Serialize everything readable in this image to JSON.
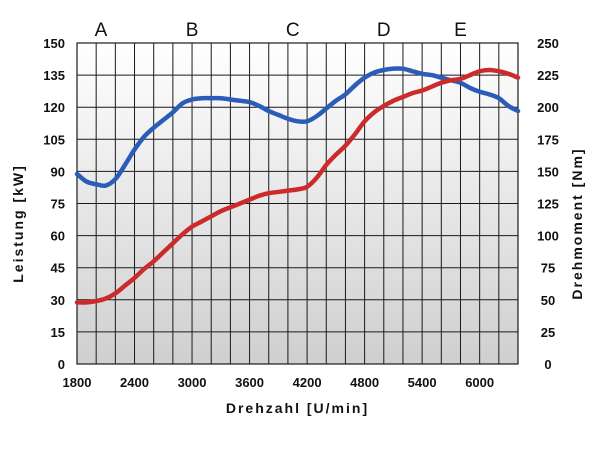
{
  "chart_data": {
    "type": "line",
    "title": "",
    "xlabel": "Drehzahl [U/min]",
    "ylabel": "Leistung [kW]",
    "y2label": "Drehmoment [Nm]",
    "xlim": [
      1800,
      6400
    ],
    "ylim": [
      0,
      150
    ],
    "y2lim": [
      0,
      250
    ],
    "x_ticks": [
      1800,
      2400,
      3000,
      3600,
      4200,
      4800,
      5400,
      6000
    ],
    "y_ticks": [
      0,
      15,
      30,
      45,
      60,
      75,
      90,
      105,
      120,
      135,
      150
    ],
    "y2_ticks": [
      0,
      25,
      50,
      75,
      100,
      125,
      150,
      175,
      200,
      225,
      250
    ],
    "grid": true,
    "grid_x_step": 200,
    "grid_y_step": 15,
    "legend": "none",
    "zone_labels": [
      {
        "text": "A",
        "x": 2050
      },
      {
        "text": "B",
        "x": 3000
      },
      {
        "text": "C",
        "x": 4050
      },
      {
        "text": "D",
        "x": 5000
      },
      {
        "text": "E",
        "x": 5800
      }
    ],
    "series": [
      {
        "axis": "right",
        "color": "#2a5db8",
        "x": [
          1800,
          1900,
          2000,
          2100,
          2200,
          2300,
          2400,
          2500,
          2600,
          2700,
          2800,
          2900,
          3000,
          3100,
          3200,
          3300,
          3400,
          3500,
          3600,
          3700,
          3800,
          3900,
          4000,
          4100,
          4200,
          4300,
          4400,
          4500,
          4600,
          4700,
          4800,
          4900,
          5000,
          5100,
          5200,
          5300,
          5400,
          5500,
          5600,
          5700,
          5800,
          5900,
          6000,
          6100,
          6200,
          6300,
          6400
        ],
        "y": [
          148,
          142,
          140,
          139,
          144,
          155,
          167,
          177,
          184,
          190,
          196,
          203,
          206,
          207,
          207,
          207,
          206,
          205,
          204,
          201,
          197,
          194,
          191,
          189,
          189,
          193,
          199,
          205,
          210,
          217,
          223,
          227,
          229,
          230,
          230,
          228,
          226,
          225,
          223,
          221,
          219,
          215,
          212,
          210,
          207,
          201,
          197
        ]
      },
      {
        "axis": "right",
        "color": "#cc2b2b",
        "x": [
          1800,
          1900,
          2000,
          2100,
          2200,
          2300,
          2400,
          2500,
          2600,
          2700,
          2800,
          2900,
          3000,
          3100,
          3200,
          3300,
          3400,
          3500,
          3600,
          3700,
          3800,
          3900,
          4000,
          4100,
          4200,
          4300,
          4400,
          4500,
          4600,
          4700,
          4800,
          4900,
          5000,
          5100,
          5200,
          5300,
          5400,
          5500,
          5600,
          5700,
          5800,
          5900,
          6000,
          6100,
          6200,
          6300,
          6400
        ],
        "y": [
          48,
          48,
          49,
          51,
          55,
          61,
          67,
          74,
          80,
          87,
          94,
          101,
          107,
          111,
          115,
          119,
          122,
          125,
          128,
          131,
          133,
          134,
          135,
          136,
          138,
          145,
          155,
          163,
          170,
          179,
          189,
          196,
          201,
          205,
          208,
          211,
          213,
          216,
          219,
          221,
          222,
          225,
          228,
          229,
          228,
          226,
          223
        ]
      }
    ]
  }
}
